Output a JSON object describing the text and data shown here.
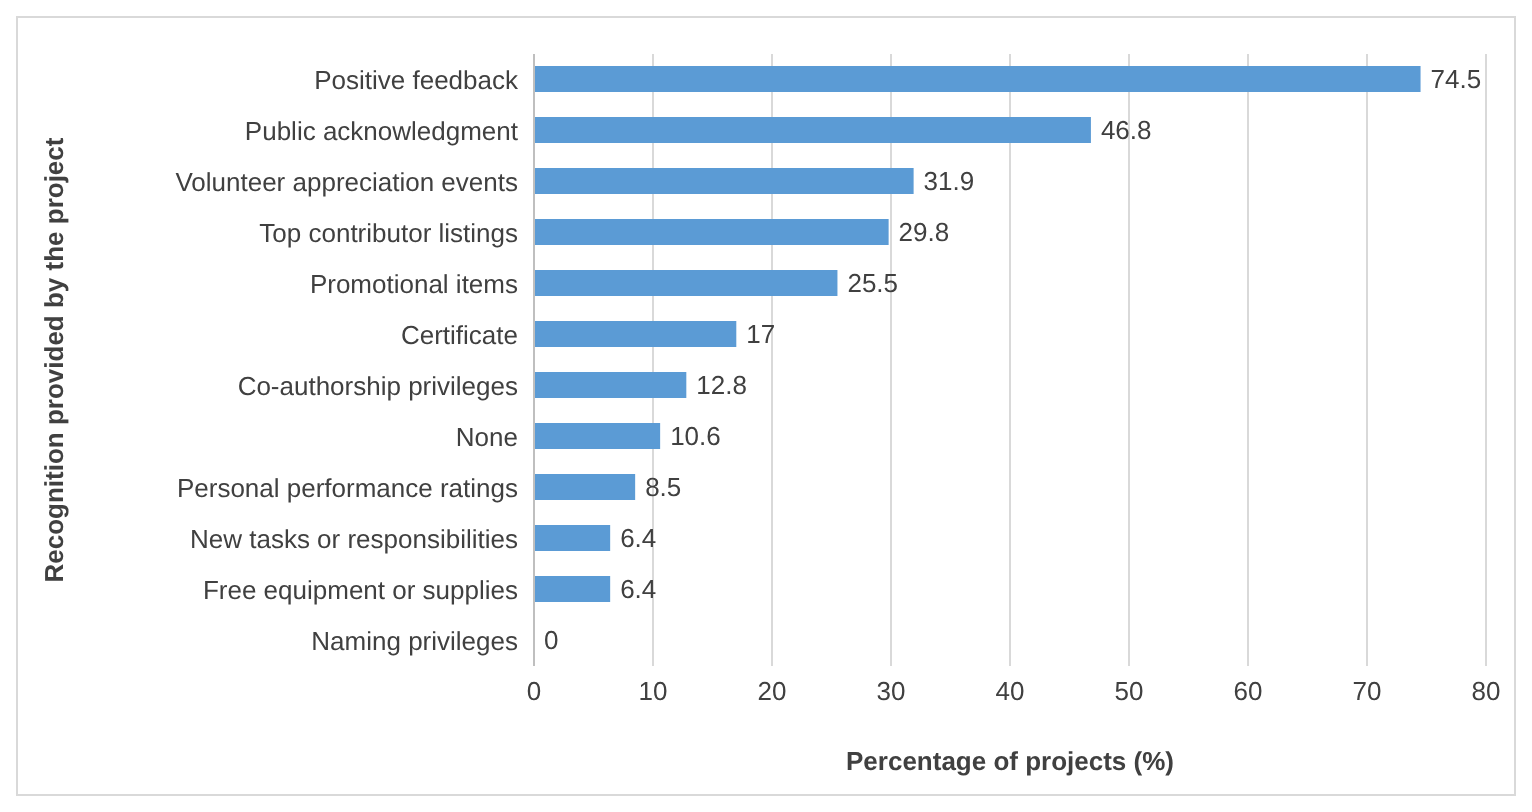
{
  "chart_data": {
    "type": "bar",
    "orientation": "horizontal",
    "xlabel": "Percentage of projects (%)",
    "ylabel": "Recognition provided by the project",
    "categories": [
      "Positive feedback",
      "Public acknowledgment",
      "Volunteer appreciation events",
      "Top contributor listings",
      "Promotional items",
      "Certificate",
      "Co-authorship privileges",
      "None",
      "Personal performance ratings",
      "New tasks or responsibilities",
      "Free equipment or supplies",
      "Naming privileges"
    ],
    "values": [
      74.5,
      46.8,
      31.9,
      29.8,
      25.5,
      17,
      12.8,
      10.6,
      8.5,
      6.4,
      6.4,
      0
    ],
    "color": "#5b9bd5",
    "xlim": [
      0,
      80
    ],
    "xticks": [
      0,
      10,
      20,
      30,
      40,
      50,
      60,
      70,
      80
    ],
    "grid": "x",
    "data_labels": true
  }
}
